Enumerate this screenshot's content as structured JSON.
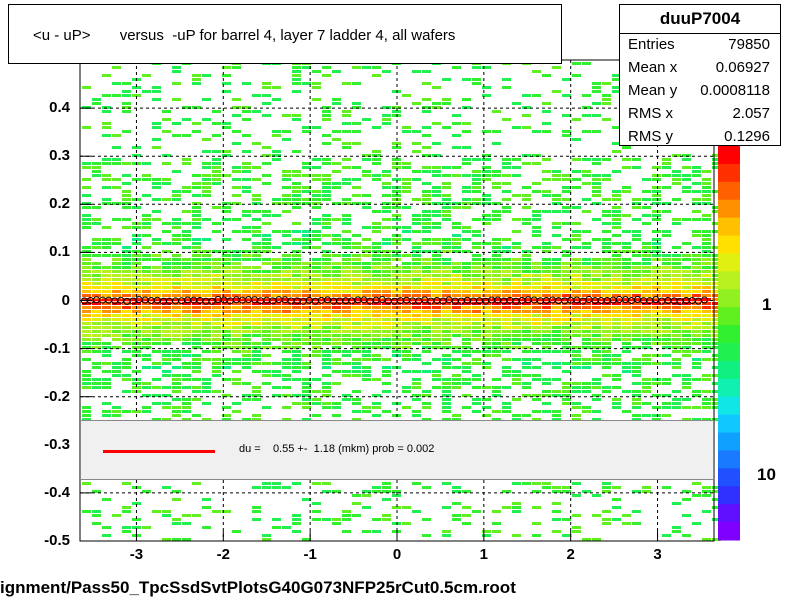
{
  "title": "<u - uP>       versus  -uP for barrel 4, layer 7 ladder 4, all wafers",
  "stats": {
    "name": "duuP7004",
    "rows": [
      {
        "label": "Entries",
        "value": "79850"
      },
      {
        "label": "Mean x",
        "value": "0.06927"
      },
      {
        "label": "Mean y",
        "value": "0.0008118"
      },
      {
        "label": "RMS x",
        "value": "2.057"
      },
      {
        "label": "RMS y",
        "value": "0.1296"
      }
    ]
  },
  "legend": {
    "text": "du =    0.55 +-  1.18 (mkm) prob = 0.002",
    "color": "#ff0000"
  },
  "footer": "ignment/Pass50_TpcSsdSvtPlotsG40G073NFP25rCut0.5cm.root",
  "chart_data": {
    "type": "heatmap",
    "title": "<u - uP>       versus  -uP for barrel 4, layer 7 ladder 4, all wafers",
    "xlim": [
      -3.65,
      3.65
    ],
    "ylim": [
      -0.5,
      0.5
    ],
    "x_ticks": [
      "-3",
      "-2",
      "-1",
      "0",
      "1",
      "2",
      "3"
    ],
    "x_tick_values": [
      -3,
      -2,
      -1,
      0,
      1,
      2,
      3
    ],
    "y_ticks": [
      "-0.5",
      "-0.4",
      "-0.3",
      "-0.2",
      "-0.1",
      "0",
      "0.1",
      "0.2",
      "0.3",
      "0.4"
    ],
    "y_tick_values": [
      -0.5,
      -0.4,
      -0.3,
      -0.2,
      -0.1,
      0,
      0.1,
      0.2,
      0.3,
      0.4
    ],
    "z_ticks": [
      "1",
      "10"
    ],
    "grid": true,
    "log_z": true,
    "profile_mean_y": 0.0,
    "profile_x_range": [
      -3.6,
      3.6
    ],
    "fit_line": {
      "y": 0.00055,
      "color": "#ff0000"
    }
  }
}
